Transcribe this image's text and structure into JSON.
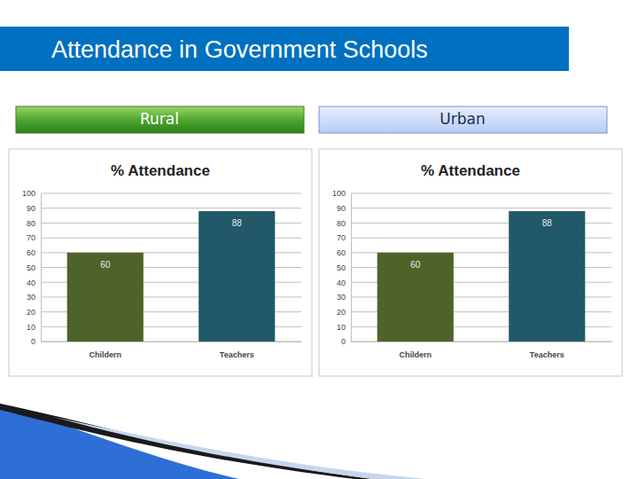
{
  "title": "Attendance in Government Schools",
  "chart_data": [
    {
      "type": "bar",
      "subtitle": "Rural",
      "title": "% Attendance",
      "categories": [
        "Childern",
        "Teachers"
      ],
      "values": [
        60,
        88
      ],
      "colors": [
        "#4f6228",
        "#215968"
      ],
      "ylim": [
        0,
        100
      ],
      "yticks": [
        0,
        10,
        20,
        30,
        40,
        50,
        60,
        70,
        80,
        90,
        100
      ],
      "grid": true,
      "data_labels": true
    },
    {
      "type": "bar",
      "subtitle": "Urban",
      "title": "% Attendance",
      "categories": [
        "Childern",
        "Teachers"
      ],
      "values": [
        60,
        88
      ],
      "colors": [
        "#4f6228",
        "#215968"
      ],
      "ylim": [
        0,
        100
      ],
      "yticks": [
        0,
        10,
        20,
        30,
        40,
        50,
        60,
        70,
        80,
        90,
        100
      ],
      "grid": true,
      "data_labels": true
    }
  ]
}
